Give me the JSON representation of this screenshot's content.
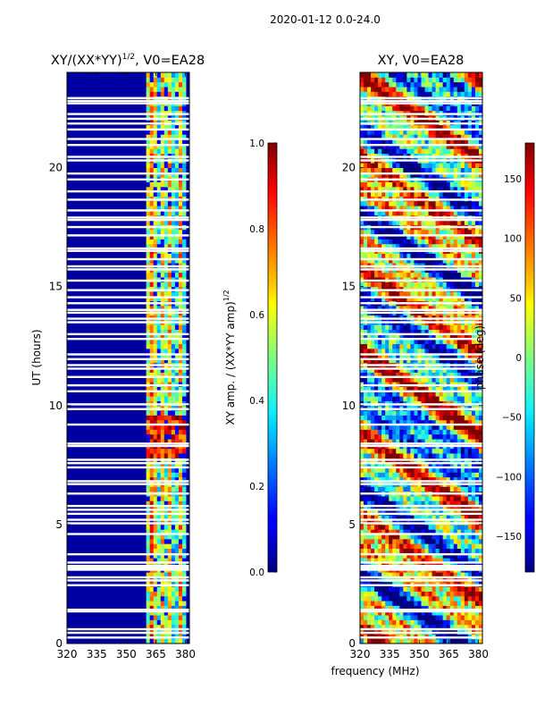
{
  "figure": {
    "suptitle": "2020-01-12 0.0-24.0",
    "shared_xlabel": "frequency (MHz)"
  },
  "chart_data": [
    {
      "type": "heatmap",
      "title": "XY/(XX*YY)^1/2, V0=EA28",
      "title_main": "XY/(XX*YY)",
      "title_sup": "1/2",
      "title_tail": ", V0=EA28",
      "xlabel": "frequency (MHz)",
      "ylabel": "UT (hours)",
      "xlim": [
        320,
        382
      ],
      "ylim": [
        0,
        24
      ],
      "xticks": [
        320,
        335,
        350,
        365,
        380
      ],
      "yticks": [
        0,
        5,
        10,
        15,
        20
      ],
      "colorbar": {
        "label": "XY amp. / (XX*YY amp)^1/2",
        "label_main": "XY amp. / (XX*YY amp)",
        "label_sup": "1/2",
        "range": [
          0.0,
          1.0
        ],
        "ticks": [
          "0.0",
          "0.2",
          "0.4",
          "0.6",
          "0.8",
          "1.0"
        ]
      },
      "active_band_mhz": [
        360,
        381
      ],
      "hot_band_hours": [
        7.8,
        9.6
      ]
    },
    {
      "type": "heatmap",
      "title": "XY, V0=EA28",
      "xlabel": "frequency (MHz)",
      "ylabel": "",
      "xlim": [
        320,
        382
      ],
      "ylim": [
        0,
        24
      ],
      "xticks": [
        320,
        335,
        350,
        365,
        380
      ],
      "yticks": [
        0,
        5,
        10,
        15,
        20
      ],
      "colorbar": {
        "label": "phase (deg)",
        "range": [
          -180,
          180
        ],
        "ticks": [
          "−150",
          "−100",
          "−50",
          "0",
          "50",
          "100",
          "150"
        ]
      }
    }
  ],
  "flagged_hours": [
    0.25,
    0.45,
    0.6,
    1.35,
    1.42,
    2.45,
    2.65,
    2.78,
    3.1,
    3.18,
    3.26,
    3.4,
    3.75,
    4.6,
    5.05,
    5.2,
    5.45,
    5.62,
    5.78,
    6.3,
    6.7,
    6.82,
    7.4,
    7.58,
    7.72,
    8.3,
    8.4,
    9.2,
    9.85,
    10.05,
    10.6,
    10.85,
    11.2,
    11.55,
    11.7,
    11.95,
    12.15,
    12.8,
    13.0,
    13.5,
    13.65,
    13.9,
    14.02,
    14.3,
    14.55,
    14.85,
    15.25,
    15.72,
    15.85,
    16.15,
    16.5,
    16.6,
    17.15,
    17.5,
    17.8,
    17.9,
    18.2,
    18.65,
    19.0,
    19.5,
    19.75,
    20.3,
    20.45,
    20.95,
    21.2,
    21.6,
    21.85,
    22.05,
    22.25,
    22.7,
    22.8,
    22.92
  ],
  "colormap_stops": [
    [
      0.0,
      "#00007f"
    ],
    [
      0.11,
      "#0000ff"
    ],
    [
      0.125,
      "#0000ff"
    ],
    [
      0.34,
      "#00d4ff"
    ],
    [
      0.375,
      "#0ff0ff"
    ],
    [
      0.5,
      "#7fff7f"
    ],
    [
      0.625,
      "#ffff00"
    ],
    [
      0.66,
      "#ffd200"
    ],
    [
      0.89,
      "#ff0000"
    ],
    [
      1.0,
      "#7f0000"
    ]
  ]
}
